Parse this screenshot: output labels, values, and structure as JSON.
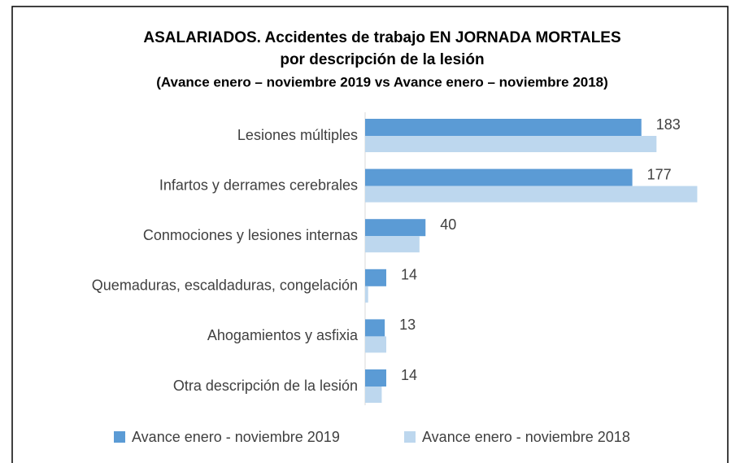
{
  "chart_data": {
    "type": "hbar",
    "title": "ASALARIADOS. Accidentes de trabajo EN JORNADA MORTALES",
    "title_line2": "por descripción de la lesión",
    "subtitle": "(Avance enero – noviembre 2019 vs Avance enero – noviembre 2018)",
    "categories": [
      "Lesiones múltiples",
      "Infartos y derrames cerebrales",
      "Conmociones y lesiones internas",
      "Quemaduras, escaldaduras, congelación",
      "Ahogamientos y asfixia",
      "Otra descripción de la lesión"
    ],
    "series": [
      {
        "name": "Avance enero - noviembre 2019",
        "color": "#5b9bd5",
        "values": [
          183,
          177,
          40,
          14,
          13,
          14
        ],
        "show_labels": true
      },
      {
        "name": "Avance enero - noviembre 2018",
        "color": "#bdd7ee",
        "values": [
          193,
          220,
          36,
          2,
          14,
          11
        ],
        "show_labels": false
      }
    ],
    "xlim": [
      0,
      230
    ],
    "legend": "bottom"
  }
}
